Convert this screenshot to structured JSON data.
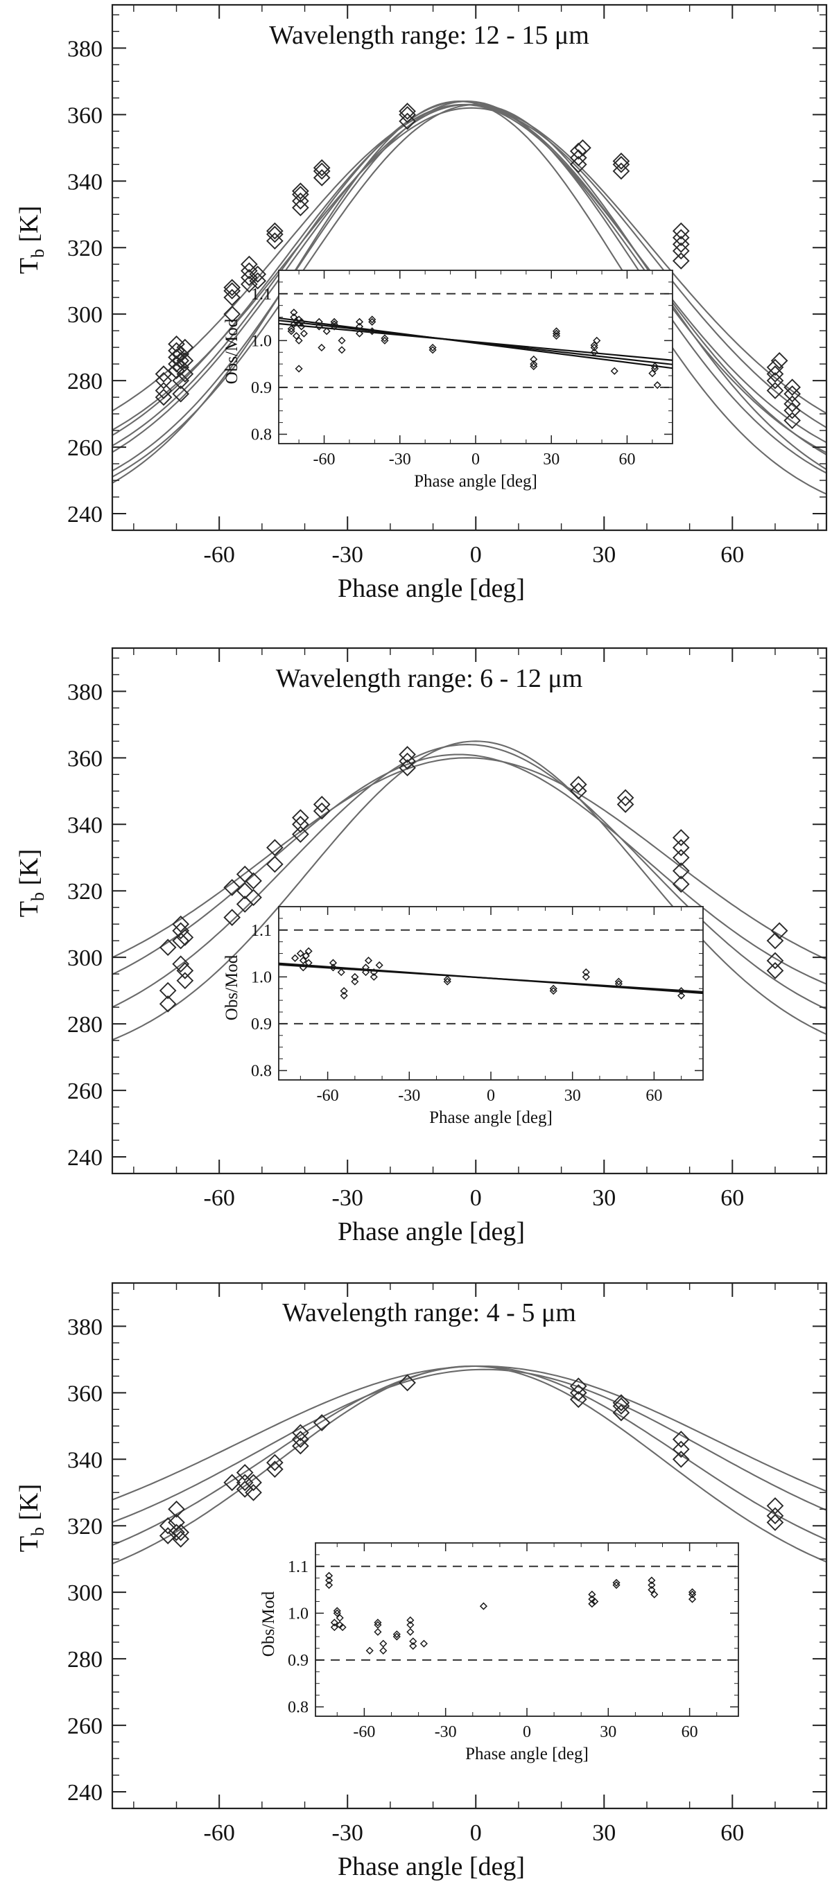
{
  "chart_data": [
    {
      "type": "line",
      "title": "Wavelength range: 12 - 15 μm",
      "xlabel": "Phase angle [deg]",
      "ylabel": "Tb [K]",
      "xlim": [
        -85,
        82
      ],
      "ylim": [
        235,
        393
      ],
      "xticks": [
        -60,
        -30,
        0,
        30,
        60
      ],
      "yticks": [
        240,
        260,
        280,
        300,
        320,
        340,
        360,
        380
      ],
      "model_curves": {
        "count": 8,
        "peak_range": [
          361,
          364
        ],
        "peak_x": -2,
        "right_end_range": [
          246,
          266
        ]
      },
      "observations": [
        [
          -73,
          275
        ],
        [
          -73,
          277
        ],
        [
          -73,
          280
        ],
        [
          -73,
          282
        ],
        [
          -70,
          283
        ],
        [
          -70,
          285
        ],
        [
          -70,
          287
        ],
        [
          -70,
          289
        ],
        [
          -70,
          291
        ],
        [
          -69,
          276
        ],
        [
          -69,
          280
        ],
        [
          -69,
          284
        ],
        [
          -69,
          286
        ],
        [
          -69,
          288
        ],
        [
          -68,
          282
        ],
        [
          -68,
          286
        ],
        [
          -68,
          290
        ],
        [
          -57,
          300
        ],
        [
          -57,
          305
        ],
        [
          -57,
          307
        ],
        [
          -57,
          308
        ],
        [
          -53,
          309
        ],
        [
          -53,
          311
        ],
        [
          -53,
          313
        ],
        [
          -53,
          315
        ],
        [
          -51,
          310
        ],
        [
          -51,
          312
        ],
        [
          -47,
          322
        ],
        [
          -47,
          324
        ],
        [
          -47,
          325
        ],
        [
          -41,
          332
        ],
        [
          -41,
          334
        ],
        [
          -41,
          336
        ],
        [
          -41,
          337
        ],
        [
          -36,
          341
        ],
        [
          -36,
          343
        ],
        [
          -36,
          344
        ],
        [
          -16,
          358
        ],
        [
          -16,
          360
        ],
        [
          -16,
          361
        ],
        [
          24,
          345
        ],
        [
          24,
          347
        ],
        [
          24,
          349
        ],
        [
          25,
          350
        ],
        [
          34,
          343
        ],
        [
          34,
          345
        ],
        [
          34,
          346
        ],
        [
          48,
          316
        ],
        [
          48,
          319
        ],
        [
          48,
          321
        ],
        [
          48,
          323
        ],
        [
          48,
          325
        ],
        [
          70,
          277
        ],
        [
          70,
          280
        ],
        [
          70,
          282
        ],
        [
          70,
          284
        ],
        [
          71,
          286
        ],
        [
          74,
          268
        ],
        [
          74,
          271
        ],
        [
          74,
          273
        ],
        [
          74,
          276
        ],
        [
          74,
          278
        ]
      ],
      "inset": {
        "xlabel": "Phase angle [deg]",
        "ylabel": "Obs/Mod",
        "xlim": [
          -78,
          78
        ],
        "ylim": [
          0.78,
          1.15
        ],
        "xticks": [
          -60,
          -30,
          0,
          30,
          60
        ],
        "yticks": [
          0.8,
          0.9,
          1.0,
          1.1
        ],
        "reference_lines": [
          0.9,
          1.1
        ],
        "trend_lines": [
          {
            "x": [
              -78,
              78
            ],
            "y": [
              1.043,
              0.949
            ]
          },
          {
            "x": [
              -78,
              78
            ],
            "y": [
              1.036,
              0.958
            ]
          },
          {
            "x": [
              -78,
              78
            ],
            "y": [
              1.048,
              0.941
            ]
          }
        ],
        "observations": [
          [
            -73,
            1.02
          ],
          [
            -73,
            1.025
          ],
          [
            -72,
            1.035
          ],
          [
            -72,
            1.05
          ],
          [
            -72,
            1.06
          ],
          [
            -71,
            1.04
          ],
          [
            -71,
            1.01
          ],
          [
            -70,
            1.0
          ],
          [
            -70,
            0.94
          ],
          [
            -70,
            1.045
          ],
          [
            -69,
            1.03
          ],
          [
            -69,
            1.04
          ],
          [
            -68,
            1.015
          ],
          [
            -62,
            1.04
          ],
          [
            -62,
            1.03
          ],
          [
            -61,
            0.985
          ],
          [
            -59,
            1.02
          ],
          [
            -56,
            1.04
          ],
          [
            -56,
            1.035
          ],
          [
            -56,
            1.03
          ],
          [
            -53,
            1.0
          ],
          [
            -53,
            0.98
          ],
          [
            -46,
            1.015
          ],
          [
            -46,
            1.03
          ],
          [
            -46,
            1.04
          ],
          [
            -41,
            1.02
          ],
          [
            -41,
            1.04
          ],
          [
            -41,
            1.045
          ],
          [
            -36,
            1.0
          ],
          [
            -36,
            1.005
          ],
          [
            -17,
            0.98
          ],
          [
            -17,
            0.985
          ],
          [
            23,
            0.95
          ],
          [
            23,
            0.945
          ],
          [
            23,
            0.96
          ],
          [
            32,
            1.015
          ],
          [
            32,
            1.02
          ],
          [
            32,
            1.01
          ],
          [
            47,
            0.975
          ],
          [
            47,
            0.985
          ],
          [
            47,
            0.99
          ],
          [
            48,
            1.0
          ],
          [
            55,
            0.935
          ],
          [
            70,
            0.93
          ],
          [
            71,
            0.945
          ],
          [
            71,
            0.94
          ],
          [
            72,
            0.905
          ]
        ]
      }
    },
    {
      "type": "line",
      "title": "Wavelength range: 6 - 12 μm",
      "xlabel": "Phase angle [deg]",
      "ylabel": "Tb [K]",
      "xlim": [
        -85,
        82
      ],
      "ylim": [
        235,
        393
      ],
      "xticks": [
        -60,
        -30,
        0,
        30,
        60
      ],
      "yticks": [
        240,
        260,
        280,
        300,
        320,
        340,
        360,
        380
      ],
      "model_curves": {
        "count": 4,
        "peak_range": [
          360,
          365
        ],
        "peak_x": -2,
        "right_end_range": [
          257,
          288
        ]
      },
      "observations": [
        [
          -72,
          286
        ],
        [
          -72,
          290
        ],
        [
          -72,
          303
        ],
        [
          -69,
          298
        ],
        [
          -69,
          305
        ],
        [
          -69,
          308
        ],
        [
          -69,
          310
        ],
        [
          -68,
          293
        ],
        [
          -68,
          296
        ],
        [
          -68,
          306
        ],
        [
          -57,
          312
        ],
        [
          -57,
          321
        ],
        [
          -54,
          316
        ],
        [
          -54,
          320
        ],
        [
          -54,
          325
        ],
        [
          -52,
          318
        ],
        [
          -52,
          323
        ],
        [
          -47,
          328
        ],
        [
          -47,
          333
        ],
        [
          -41,
          337
        ],
        [
          -41,
          340
        ],
        [
          -41,
          342
        ],
        [
          -36,
          344
        ],
        [
          -36,
          346
        ],
        [
          -16,
          357
        ],
        [
          -16,
          359
        ],
        [
          -16,
          361
        ],
        [
          24,
          350
        ],
        [
          24,
          352
        ],
        [
          35,
          346
        ],
        [
          35,
          348
        ],
        [
          48,
          322
        ],
        [
          48,
          326
        ],
        [
          48,
          330
        ],
        [
          48,
          333
        ],
        [
          48,
          336
        ],
        [
          70,
          296
        ],
        [
          70,
          299
        ],
        [
          70,
          305
        ],
        [
          71,
          308
        ]
      ],
      "inset": {
        "xlabel": "Phase angle [deg]",
        "ylabel": "Obs/Mod",
        "xlim": [
          -78,
          78
        ],
        "ylim": [
          0.78,
          1.15
        ],
        "xticks": [
          -60,
          -30,
          0,
          30,
          60
        ],
        "yticks": [
          0.8,
          0.9,
          1.0,
          1.1
        ],
        "reference_lines": [
          0.9,
          1.1
        ],
        "trend_lines": [
          {
            "x": [
              -78,
              78
            ],
            "y": [
              1.029,
              0.965
            ]
          },
          {
            "x": [
              -78,
              78
            ],
            "y": [
              1.026,
              0.968
            ]
          }
        ],
        "observations": [
          [
            -72,
            1.04
          ],
          [
            -70,
            1.05
          ],
          [
            -69,
            1.02
          ],
          [
            -69,
            1.035
          ],
          [
            -68,
            1.045
          ],
          [
            -67,
            1.03
          ],
          [
            -67,
            1.055
          ],
          [
            -58,
            1.02
          ],
          [
            -58,
            1.03
          ],
          [
            -55,
            1.01
          ],
          [
            -54,
            0.97
          ],
          [
            -54,
            0.96
          ],
          [
            -50,
            0.99
          ],
          [
            -50,
            1.0
          ],
          [
            -46,
            1.01
          ],
          [
            -46,
            1.02
          ],
          [
            -45,
            1.035
          ],
          [
            -43,
            1.0
          ],
          [
            -43,
            1.01
          ],
          [
            -41,
            1.025
          ],
          [
            -16,
            0.99
          ],
          [
            -16,
            0.995
          ],
          [
            23,
            0.97
          ],
          [
            23,
            0.975
          ],
          [
            35,
            1.0
          ],
          [
            35,
            1.01
          ],
          [
            47,
            0.985
          ],
          [
            47,
            0.99
          ],
          [
            70,
            0.96
          ],
          [
            70,
            0.97
          ]
        ]
      }
    },
    {
      "type": "line",
      "title": "Wavelength range: 4 - 5 μm",
      "xlabel": "Phase angle [deg]",
      "ylabel": "Tb [K]",
      "xlim": [
        -85,
        82
      ],
      "ylim": [
        235,
        393
      ],
      "xticks": [
        -60,
        -30,
        0,
        30,
        60
      ],
      "yticks": [
        240,
        260,
        280,
        300,
        320,
        340,
        360,
        380
      ],
      "model_curves": {
        "count": 4,
        "peak_range": [
          366,
          369
        ],
        "peak_x": 0,
        "right_end_range": [
          295,
          320
        ]
      },
      "observations": [
        [
          -72,
          317
        ],
        [
          -72,
          320
        ],
        [
          -70,
          318
        ],
        [
          -70,
          321
        ],
        [
          -70,
          325
        ],
        [
          -69,
          316
        ],
        [
          -69,
          318
        ],
        [
          -57,
          333
        ],
        [
          -54,
          331
        ],
        [
          -54,
          333
        ],
        [
          -54,
          336
        ],
        [
          -52,
          330
        ],
        [
          -52,
          333
        ],
        [
          -47,
          337
        ],
        [
          -47,
          339
        ],
        [
          -41,
          344
        ],
        [
          -41,
          346
        ],
        [
          -41,
          348
        ],
        [
          -36,
          351
        ],
        [
          -16,
          363
        ],
        [
          24,
          358
        ],
        [
          24,
          360
        ],
        [
          24,
          362
        ],
        [
          34,
          354
        ],
        [
          34,
          356
        ],
        [
          34,
          357
        ],
        [
          48,
          340
        ],
        [
          48,
          343
        ],
        [
          48,
          346
        ],
        [
          70,
          321
        ],
        [
          70,
          323
        ],
        [
          70,
          326
        ]
      ],
      "inset": {
        "xlabel": "Phase angle [deg]",
        "ylabel": "Obs/Mod",
        "xlim": [
          -78,
          78
        ],
        "ylim": [
          0.78,
          1.15
        ],
        "xticks": [
          -60,
          -30,
          0,
          30,
          60
        ],
        "yticks": [
          0.8,
          0.9,
          1.0,
          1.1
        ],
        "reference_lines": [
          0.9,
          1.1
        ],
        "trend_lines": [],
        "observations": [
          [
            -73,
            1.06
          ],
          [
            -73,
            1.07
          ],
          [
            -73,
            1.08
          ],
          [
            -71,
            0.97
          ],
          [
            -71,
            0.98
          ],
          [
            -70,
            1.0
          ],
          [
            -70,
            1.005
          ],
          [
            -69,
            0.975
          ],
          [
            -69,
            0.99
          ],
          [
            -68,
            0.97
          ],
          [
            -58,
            0.92
          ],
          [
            -55,
            0.96
          ],
          [
            -55,
            0.98
          ],
          [
            -55,
            0.975
          ],
          [
            -53,
            0.935
          ],
          [
            -53,
            0.92
          ],
          [
            -48,
            0.95
          ],
          [
            -48,
            0.955
          ],
          [
            -43,
            0.96
          ],
          [
            -43,
            0.975
          ],
          [
            -43,
            0.985
          ],
          [
            -42,
            0.94
          ],
          [
            -42,
            0.93
          ],
          [
            -38,
            0.935
          ],
          [
            -16,
            1.015
          ],
          [
            24,
            1.02
          ],
          [
            24,
            1.03
          ],
          [
            24,
            1.04
          ],
          [
            25,
            1.025
          ],
          [
            33,
            1.06
          ],
          [
            33,
            1.065
          ],
          [
            46,
            1.05
          ],
          [
            46,
            1.06
          ],
          [
            46,
            1.07
          ],
          [
            47,
            1.04
          ],
          [
            61,
            1.03
          ],
          [
            61,
            1.04
          ],
          [
            61,
            1.045
          ]
        ]
      }
    }
  ]
}
